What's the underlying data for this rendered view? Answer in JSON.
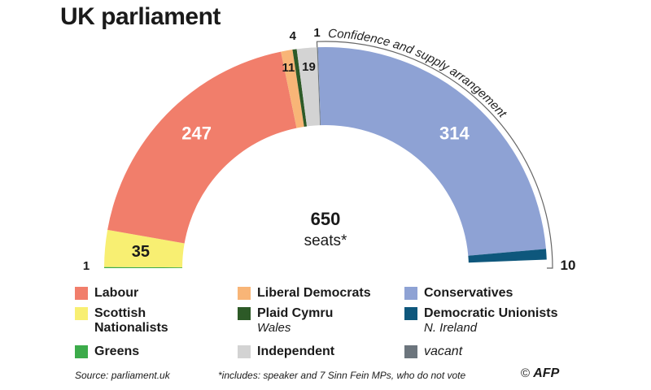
{
  "title": "UK parliament",
  "chart_data": {
    "type": "parliament-semicircle",
    "total": 650,
    "total_label": "seats*",
    "parties": [
      {
        "name": "Greens",
        "seats": 1,
        "color": "#3cab4a"
      },
      {
        "name": "Scottish Nationalists",
        "seats": 35,
        "color": "#f8ef72"
      },
      {
        "name": "Labour",
        "seats": 247,
        "color": "#f17e6b"
      },
      {
        "name": "Liberal Democrats",
        "seats": 11,
        "color": "#f8b577"
      },
      {
        "name": "Plaid Cymru",
        "seats": 4,
        "color": "#2d5a27"
      },
      {
        "name": "Independent",
        "seats": 19,
        "color": "#d3d3d3"
      },
      {
        "name": "vacant",
        "seats": 1,
        "color": "#6c757d"
      },
      {
        "name": "Conservatives",
        "seats": 314,
        "color": "#8ea2d4"
      },
      {
        "name": "Democratic Unionists",
        "seats": 10,
        "color": "#0e577c"
      }
    ],
    "segment_labels": [
      "1",
      "35",
      "247",
      "11",
      "4",
      "19",
      "1",
      "314",
      "10"
    ],
    "annotation": "Confidence and supply arrangement"
  },
  "legend": [
    {
      "label": "Labour",
      "color": "#f17e6b"
    },
    {
      "label": "Liberal Democrats",
      "color": "#f8b577"
    },
    {
      "label": "Conservatives",
      "color": "#8ea2d4"
    },
    {
      "label": "Scottish Nationalists",
      "color": "#f8ef72"
    },
    {
      "label": "Plaid Cymru",
      "sub": "Wales",
      "color": "#2d5a27"
    },
    {
      "label": "Democratic Unionists",
      "sub": "N. Ireland",
      "color": "#0e577c"
    },
    {
      "label": "Greens",
      "color": "#3cab4a"
    },
    {
      "label": "Independent",
      "color": "#d3d3d3"
    },
    {
      "label": "vacant",
      "color": "#6c757d",
      "italic": true
    }
  ],
  "source": "Source: parliament.uk",
  "footnote": "*includes: speaker and 7 Sinn Fein MPs, who do not vote",
  "credit_symbol": "©",
  "credit": "AFP"
}
